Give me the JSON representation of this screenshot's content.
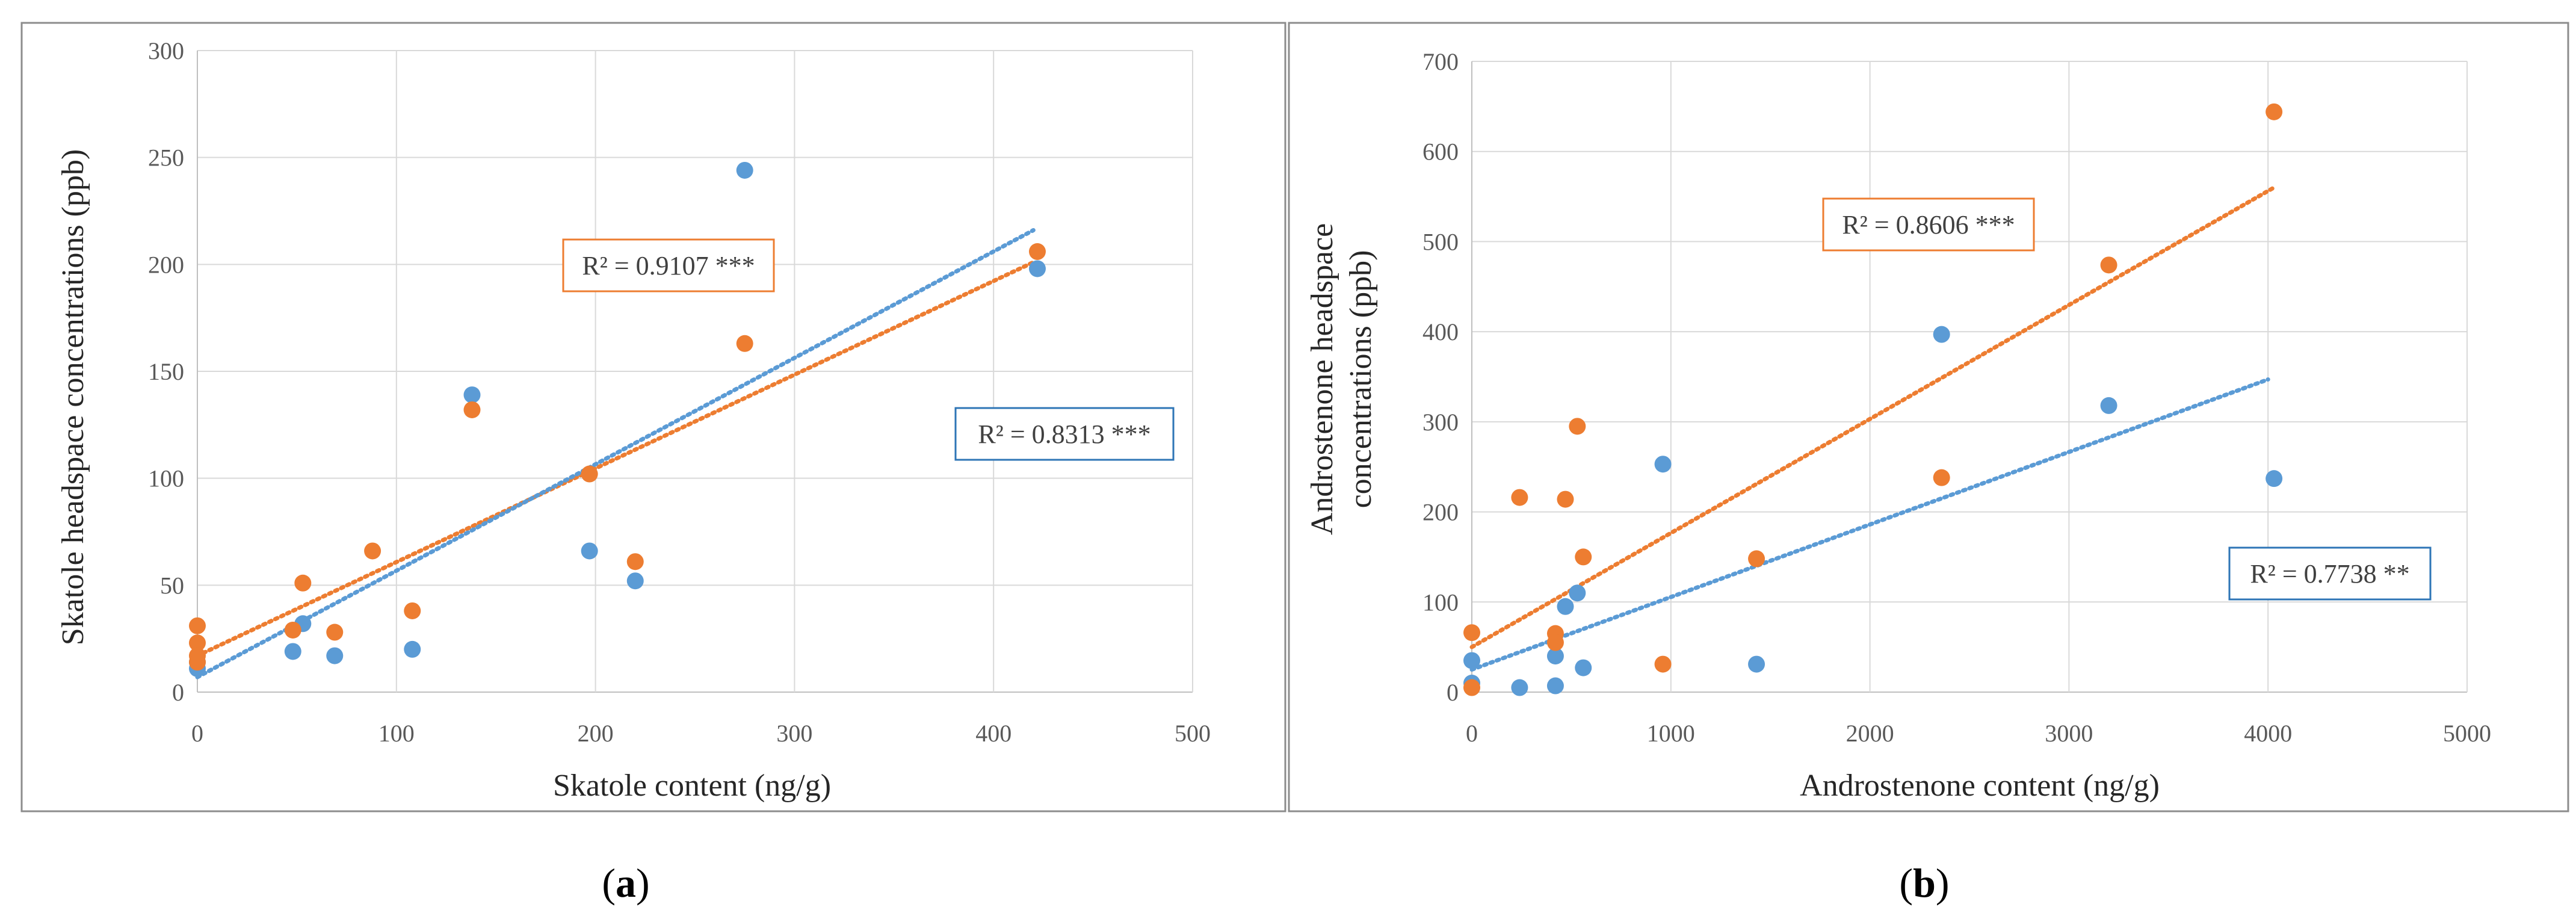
{
  "colors": {
    "blue": "#5b9bd5",
    "orange": "#ed7d31",
    "grid": "#d9d9d9",
    "border": "#8c8c8c",
    "axis": "#bfbfbf"
  },
  "chart_data": [
    {
      "type": "scatter",
      "sub_label": "a",
      "xlabel": "Skatole content (ng/g)",
      "ylabel": "Skatole headspace concentrations (ppb)",
      "xlim": [
        0,
        500
      ],
      "ylim": [
        0,
        300
      ],
      "xticks": [
        0,
        100,
        200,
        300,
        400,
        500
      ],
      "yticks": [
        0,
        50,
        100,
        150,
        200,
        250,
        300
      ],
      "grid": true,
      "series": [
        {
          "name": "blue",
          "color": "#5b9bd5",
          "points": [
            [
              0,
              11
            ],
            [
              0,
              14
            ],
            [
              48,
              19
            ],
            [
              53,
              32
            ],
            [
              69,
              17
            ],
            [
              108,
              20
            ],
            [
              138,
              139
            ],
            [
              197,
              66
            ],
            [
              220,
              52
            ],
            [
              275,
              244
            ],
            [
              422,
              198
            ]
          ],
          "trendline": [
            [
              0,
              7
            ],
            [
              420,
              216
            ]
          ],
          "r2_label": "R² = 0.8313 ***"
        },
        {
          "name": "orange",
          "color": "#ed7d31",
          "points": [
            [
              0,
              31
            ],
            [
              0,
              23
            ],
            [
              0,
              17
            ],
            [
              0,
              14
            ],
            [
              48,
              29
            ],
            [
              53,
              51
            ],
            [
              69,
              28
            ],
            [
              88,
              66
            ],
            [
              108,
              38
            ],
            [
              138,
              132
            ],
            [
              197,
              102
            ],
            [
              220,
              61
            ],
            [
              275,
              163
            ],
            [
              422,
              206
            ]
          ],
          "trendline": [
            [
              0,
              17
            ],
            [
              420,
              201
            ]
          ],
          "r2_label": "R² = 0.9107 ***"
        }
      ]
    },
    {
      "type": "scatter",
      "sub_label": "b",
      "xlabel": "Androstenone content (ng/g)",
      "ylabel_lines": [
        "Androstenone headspace",
        "concentrations (ppb)"
      ],
      "xlim": [
        0,
        5000
      ],
      "ylim": [
        0,
        700
      ],
      "xticks": [
        0,
        1000,
        2000,
        3000,
        4000,
        5000
      ],
      "yticks": [
        0,
        100,
        200,
        300,
        400,
        500,
        600,
        700
      ],
      "grid": true,
      "series": [
        {
          "name": "blue",
          "color": "#5b9bd5",
          "points": [
            [
              0,
              35
            ],
            [
              0,
              10
            ],
            [
              240,
              5
            ],
            [
              420,
              40
            ],
            [
              420,
              7
            ],
            [
              470,
              95
            ],
            [
              530,
              110
            ],
            [
              560,
              27
            ],
            [
              960,
              253
            ],
            [
              1430,
              31
            ],
            [
              2360,
              397
            ],
            [
              3200,
              318
            ],
            [
              4030,
              237
            ]
          ],
          "trendline": [
            [
              0,
              25
            ],
            [
              4000,
              347
            ]
          ],
          "r2_label": "R² = 0.7738 **"
        },
        {
          "name": "orange",
          "color": "#ed7d31",
          "points": [
            [
              0,
              66
            ],
            [
              0,
              5
            ],
            [
              240,
              216
            ],
            [
              420,
              65
            ],
            [
              420,
              55
            ],
            [
              470,
              214
            ],
            [
              530,
              295
            ],
            [
              560,
              150
            ],
            [
              960,
              31
            ],
            [
              1430,
              148
            ],
            [
              2360,
              238
            ],
            [
              3200,
              474
            ],
            [
              4030,
              644
            ]
          ],
          "trendline": [
            [
              0,
              50
            ],
            [
              4030,
              560
            ]
          ],
          "r2_label": "R² = 0.8606 ***"
        }
      ]
    }
  ]
}
